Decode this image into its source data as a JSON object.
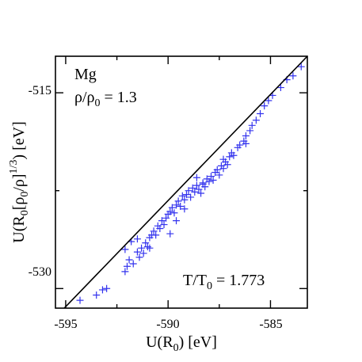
{
  "chart_data": {
    "type": "scatter",
    "title": "",
    "xlabel": "U(R₀) [eV]",
    "ylabel": "U(R₀[ρ₀/ρ]^(1/3)) [eV]",
    "xlim": [
      -595.5,
      -583.2
    ],
    "ylim": [
      -531.5,
      -512.2
    ],
    "xticks": [
      -595,
      -590,
      -585
    ],
    "yticks": [
      -530,
      -515
    ],
    "xtick_labels": [
      "-595",
      "-590",
      "-585"
    ],
    "ytick_labels": [
      "-530",
      "-515"
    ],
    "grid": false,
    "marker": "+",
    "marker_color": "#3333ee",
    "line_color": "#000000",
    "annotations": {
      "element": "Mg",
      "density_ratio": "ρ/ρ₀ = 1.3",
      "temperature_ratio": "T/T₀ = 1.773"
    },
    "fit_line": {
      "x": [
        -595.5,
        -583.2
      ],
      "y": [
        -532.2,
        -512.2
      ]
    },
    "x": [
      -594.3,
      -593.5,
      -593.2,
      -593.0,
      -592.1,
      -592.0,
      -591.9,
      -591.7,
      -591.5,
      -591.4,
      -591.3,
      -591.2,
      -591.1,
      -591.0,
      -590.9,
      -590.8,
      -590.7,
      -590.6,
      -590.5,
      -590.4,
      -590.3,
      -590.2,
      -590.1,
      -590.0,
      -589.9,
      -589.8,
      -589.7,
      -589.6,
      -589.5,
      -589.4,
      -589.3,
      -589.2,
      -589.1,
      -589.0,
      -588.9,
      -588.8,
      -588.7,
      -588.6,
      -588.5,
      -588.4,
      -588.3,
      -588.2,
      -588.1,
      -588.0,
      -587.9,
      -587.8,
      -587.7,
      -587.6,
      -587.5,
      -587.4,
      -587.3,
      -587.2,
      -587.1,
      -587.0,
      -586.9,
      -586.8,
      -586.6,
      -586.5,
      -586.3,
      -586.2,
      -586.0,
      -585.9,
      -585.7,
      -585.5,
      -585.3,
      -585.1,
      -584.9,
      -584.5,
      -584.2,
      -583.5,
      -583.9,
      -589.6,
      -588.3,
      -589.9,
      -591.5,
      -592.1,
      -590.9,
      -587.3,
      -586.2,
      -591.8,
      -589.2,
      -588.6
    ],
    "y": [
      -530.9,
      -530.5,
      -530.1,
      -530.0,
      -528.7,
      -528.3,
      -527.8,
      -528.1,
      -527.2,
      -527.6,
      -526.9,
      -527.3,
      -526.5,
      -526.8,
      -526.1,
      -525.9,
      -525.6,
      -525.9,
      -525.2,
      -525.4,
      -524.8,
      -525.1,
      -524.6,
      -524.3,
      -524.1,
      -523.8,
      -524.2,
      -523.6,
      -523.3,
      -523.7,
      -522.9,
      -523.2,
      -522.8,
      -522.5,
      -523.0,
      -522.3,
      -522.6,
      -522.1,
      -522.4,
      -522.7,
      -521.9,
      -522.2,
      -521.6,
      -521.8,
      -521.4,
      -521.7,
      -521.1,
      -520.9,
      -521.3,
      -520.6,
      -520.8,
      -520.3,
      -520.5,
      -519.9,
      -519.6,
      -519.8,
      -519.2,
      -519.0,
      -518.7,
      -518.3,
      -517.9,
      -517.5,
      -517.1,
      -516.6,
      -516.0,
      -515.6,
      -515.2,
      -514.6,
      -514.0,
      -513.0,
      -513.7,
      -524.8,
      -522.0,
      -525.8,
      -526.2,
      -527.0,
      -526.9,
      -520.1,
      -518.9,
      -526.4,
      -523.9,
      -521.5
    ]
  }
}
